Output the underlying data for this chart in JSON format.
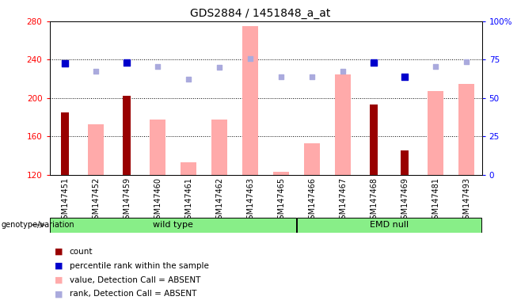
{
  "title": "GDS2884 / 1451848_a_at",
  "samples": [
    "GSM147451",
    "GSM147452",
    "GSM147459",
    "GSM147460",
    "GSM147461",
    "GSM147462",
    "GSM147463",
    "GSM147465",
    "GSM147466",
    "GSM147467",
    "GSM147468",
    "GSM147469",
    "GSM147481",
    "GSM147493"
  ],
  "groups": {
    "wild type": [
      0,
      7
    ],
    "EMD null": [
      8,
      13
    ]
  },
  "count_values": [
    185,
    null,
    202,
    null,
    null,
    null,
    null,
    null,
    null,
    null,
    193,
    145,
    null,
    null
  ],
  "value_absent": [
    null,
    173,
    null,
    178,
    133,
    178,
    275,
    123,
    153,
    225,
    null,
    null,
    207,
    215
  ],
  "percentile_rank": [
    236,
    null,
    237,
    null,
    null,
    null,
    null,
    null,
    null,
    null,
    237,
    222,
    null,
    null
  ],
  "rank_absent": [
    null,
    228,
    null,
    233,
    220,
    232,
    241,
    222,
    222,
    228,
    null,
    null,
    233,
    238
  ],
  "ylim_left": [
    120,
    280
  ],
  "yticks_left": [
    120,
    160,
    200,
    240,
    280
  ],
  "ylim_right": [
    0,
    100
  ],
  "yticks_right": [
    0,
    25,
    50,
    75,
    100
  ],
  "color_count": "#990000",
  "color_percentile": "#0000cc",
  "color_value_absent": "#ffaaaa",
  "color_rank_absent": "#aaaadd",
  "group_color": "#88ee88",
  "bar_width": 0.5
}
